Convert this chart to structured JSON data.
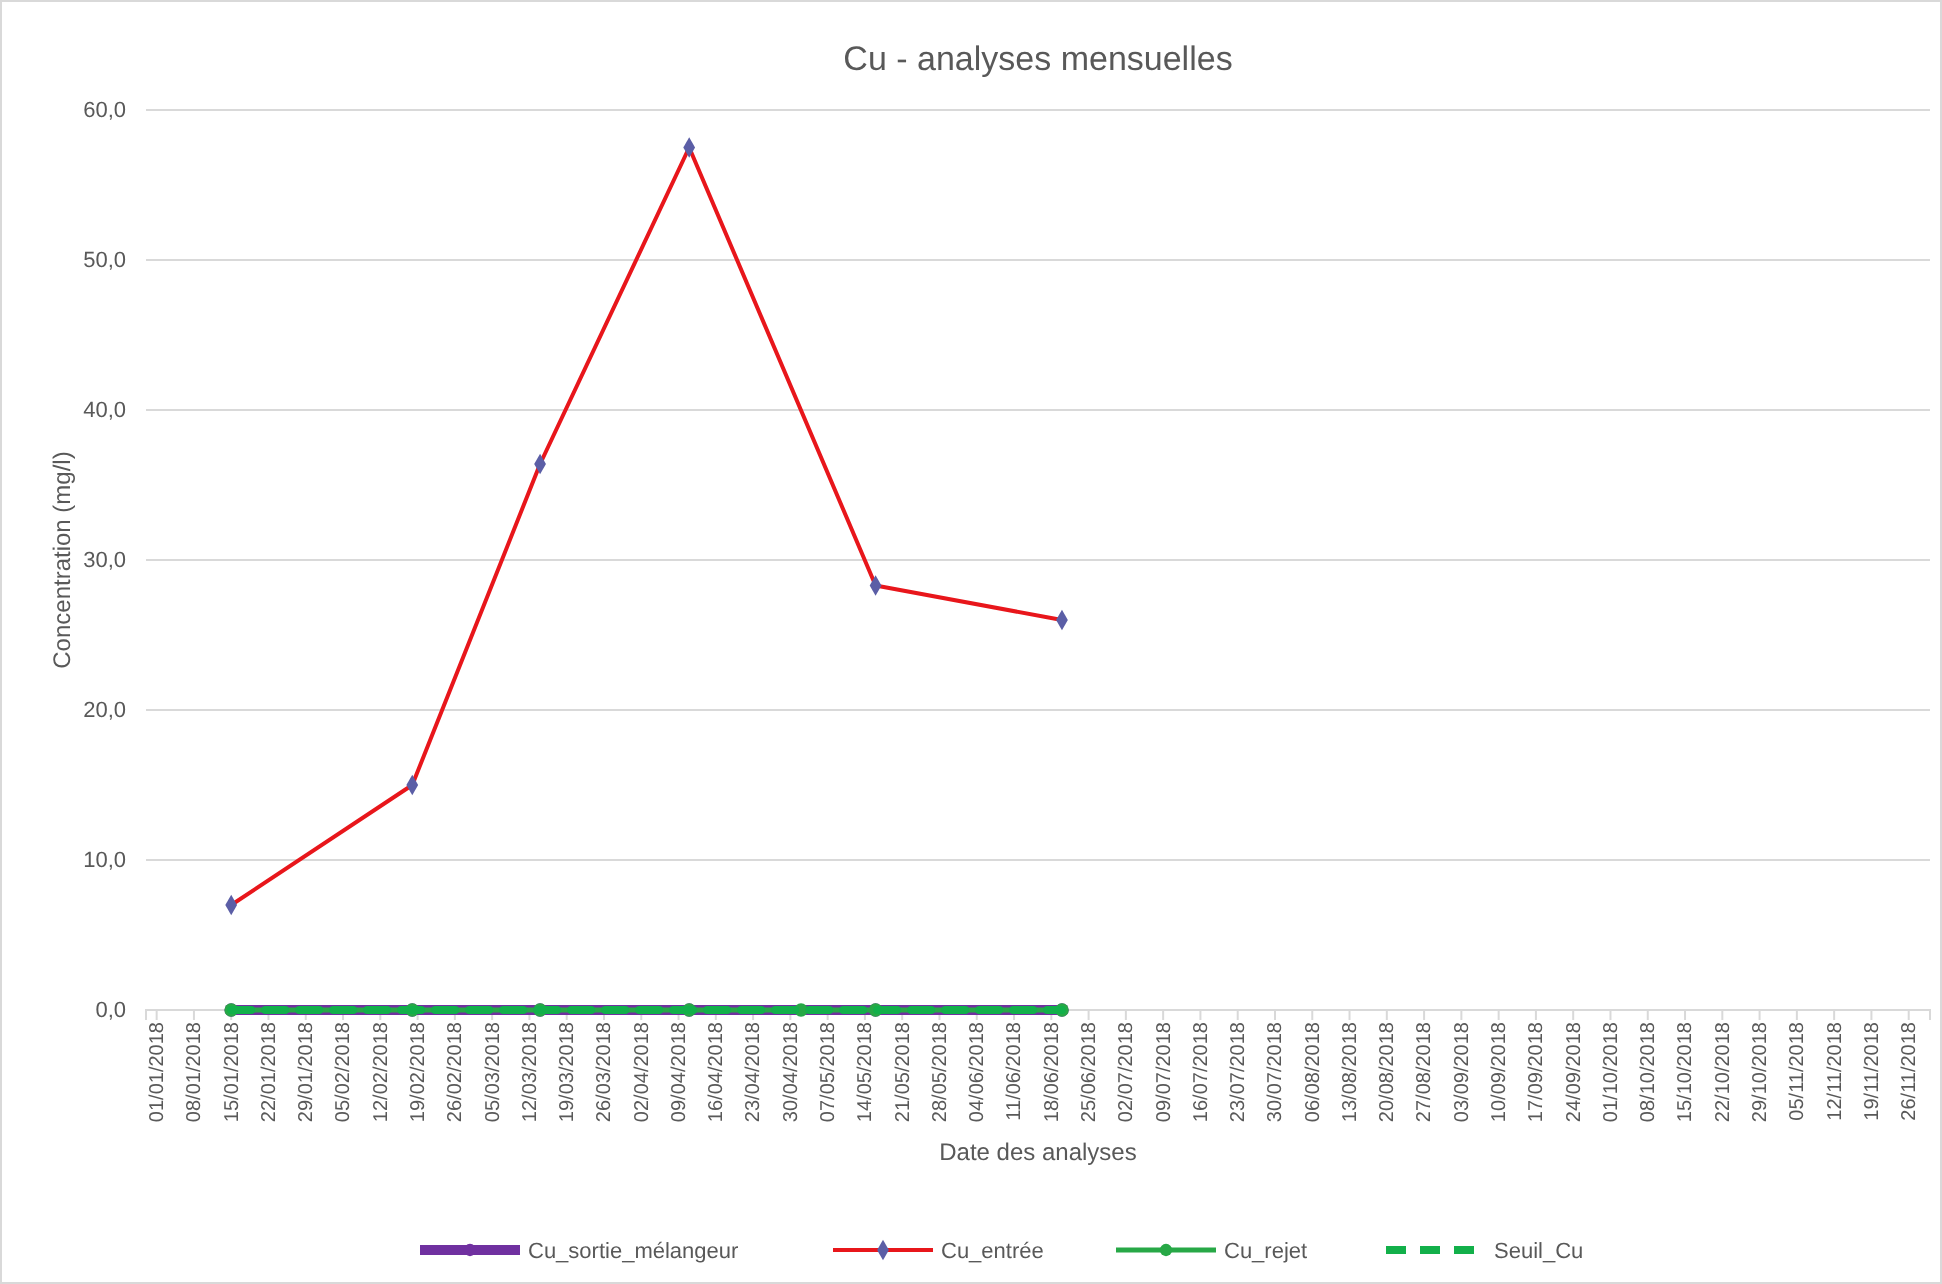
{
  "chart_data": {
    "type": "line",
    "title": "Cu - analyses mensuelles",
    "xlabel": "Date des analyses",
    "ylabel": "Concentration (mg/l)",
    "xlim": [
      "2017-12-30",
      "2018-11-30"
    ],
    "xticks": [
      {
        "value": "2018-01-01",
        "label": "01/01/2018"
      },
      {
        "value": "2018-01-08",
        "label": "08/01/2018"
      },
      {
        "value": "2018-01-15",
        "label": "15/01/2018"
      },
      {
        "value": "2018-01-22",
        "label": "22/01/2018"
      },
      {
        "value": "2018-01-29",
        "label": "29/01/2018"
      },
      {
        "value": "2018-02-05",
        "label": "05/02/2018"
      },
      {
        "value": "2018-02-12",
        "label": "12/02/2018"
      },
      {
        "value": "2018-02-19",
        "label": "19/02/2018"
      },
      {
        "value": "2018-02-26",
        "label": "26/02/2018"
      },
      {
        "value": "2018-03-05",
        "label": "05/03/2018"
      },
      {
        "value": "2018-03-12",
        "label": "12/03/2018"
      },
      {
        "value": "2018-03-19",
        "label": "19/03/2018"
      },
      {
        "value": "2018-03-26",
        "label": "26/03/2018"
      },
      {
        "value": "2018-04-02",
        "label": "02/04/2018"
      },
      {
        "value": "2018-04-09",
        "label": "09/04/2018"
      },
      {
        "value": "2018-04-16",
        "label": "16/04/2018"
      },
      {
        "value": "2018-04-23",
        "label": "23/04/2018"
      },
      {
        "value": "2018-04-30",
        "label": "30/04/2018"
      },
      {
        "value": "2018-05-07",
        "label": "07/05/2018"
      },
      {
        "value": "2018-05-14",
        "label": "14/05/2018"
      },
      {
        "value": "2018-05-21",
        "label": "21/05/2018"
      },
      {
        "value": "2018-05-28",
        "label": "28/05/2018"
      },
      {
        "value": "2018-06-04",
        "label": "04/06/2018"
      },
      {
        "value": "2018-06-11",
        "label": "11/06/2018"
      },
      {
        "value": "2018-06-18",
        "label": "18/06/2018"
      },
      {
        "value": "2018-06-25",
        "label": "25/06/2018"
      },
      {
        "value": "2018-07-02",
        "label": "02/07/2018"
      },
      {
        "value": "2018-07-09",
        "label": "09/07/2018"
      },
      {
        "value": "2018-07-16",
        "label": "16/07/2018"
      },
      {
        "value": "2018-07-23",
        "label": "23/07/2018"
      },
      {
        "value": "2018-07-30",
        "label": "30/07/2018"
      },
      {
        "value": "2018-08-06",
        "label": "06/08/2018"
      },
      {
        "value": "2018-08-13",
        "label": "13/08/2018"
      },
      {
        "value": "2018-08-20",
        "label": "20/08/2018"
      },
      {
        "value": "2018-08-27",
        "label": "27/08/2018"
      },
      {
        "value": "2018-09-03",
        "label": "03/09/2018"
      },
      {
        "value": "2018-09-10",
        "label": "10/09/2018"
      },
      {
        "value": "2018-09-17",
        "label": "17/09/2018"
      },
      {
        "value": "2018-09-24",
        "label": "24/09/2018"
      },
      {
        "value": "2018-10-01",
        "label": "01/10/2018"
      },
      {
        "value": "2018-10-08",
        "label": "08/10/2018"
      },
      {
        "value": "2018-10-15",
        "label": "15/10/2018"
      },
      {
        "value": "2018-10-22",
        "label": "22/10/2018"
      },
      {
        "value": "2018-10-29",
        "label": "29/10/2018"
      },
      {
        "value": "2018-11-05",
        "label": "05/11/2018"
      },
      {
        "value": "2018-11-12",
        "label": "12/11/2018"
      },
      {
        "value": "2018-11-19",
        "label": "19/11/2018"
      },
      {
        "value": "2018-11-26",
        "label": "26/11/2018"
      }
    ],
    "ylim": [
      0,
      60
    ],
    "yticks": [
      {
        "value": 0,
        "label": "0,0"
      },
      {
        "value": 10,
        "label": "10,0"
      },
      {
        "value": 20,
        "label": "20,0"
      },
      {
        "value": 30,
        "label": "30,0"
      },
      {
        "value": 40,
        "label": "40,0"
      },
      {
        "value": 50,
        "label": "50,0"
      },
      {
        "value": 60,
        "label": "60,0"
      }
    ],
    "grid": "y",
    "legend": "bottom",
    "series": [
      {
        "name": "Cu_sortie_mélangeur",
        "color": "#7030a0",
        "marker": "circle",
        "line_style": "solid",
        "x": [
          "2018-01-15",
          "2018-02-18",
          "2018-03-14",
          "2018-04-11",
          "2018-05-16",
          "2018-06-20"
        ],
        "values": [
          0,
          0,
          0,
          0,
          0,
          0
        ]
      },
      {
        "name": "Cu_entrée",
        "color": "#e8161b",
        "marker": "diamond",
        "line_style": "solid",
        "x": [
          "2018-01-15",
          "2018-02-18",
          "2018-03-14",
          "2018-04-11",
          "2018-05-16",
          "2018-06-20"
        ],
        "values": [
          7.0,
          15.0,
          36.4,
          57.5,
          28.3,
          26.0
        ]
      },
      {
        "name": "Cu_rejet",
        "color": "#27a846",
        "marker": "circle",
        "line_style": "solid",
        "x": [
          "2018-01-15",
          "2018-02-18",
          "2018-03-14",
          "2018-04-11",
          "2018-05-02",
          "2018-05-16",
          "2018-06-20"
        ],
        "values": [
          0,
          0,
          0,
          0,
          0,
          0,
          0
        ]
      },
      {
        "name": "Seuil_Cu",
        "color": "#12b04a",
        "marker": "none",
        "line_style": "dashed",
        "x": [
          "2018-01-15",
          "2018-06-20"
        ],
        "values": [
          0,
          0
        ]
      }
    ]
  }
}
